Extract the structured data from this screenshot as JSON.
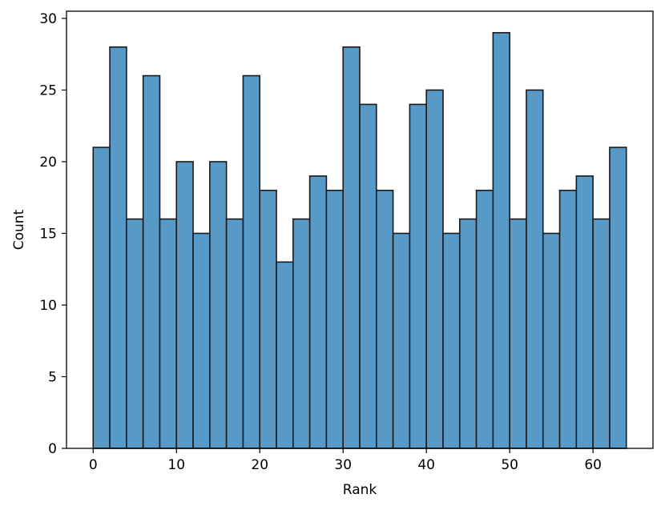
{
  "chart_data": {
    "type": "bar",
    "title": "",
    "xlabel": "Rank",
    "ylabel": "Count",
    "xlim": [
      -3.2,
      67.2
    ],
    "ylim": [
      0,
      30.5
    ],
    "xticks": [
      0,
      10,
      20,
      30,
      40,
      50,
      60
    ],
    "yticks": [
      0,
      5,
      10,
      15,
      20,
      25,
      30
    ],
    "grid": false,
    "bar_color": "#5799c7",
    "edge_color": "#1a1a1a",
    "bins": [
      {
        "x0": 0,
        "x1": 2,
        "count": 21
      },
      {
        "x0": 2,
        "x1": 4,
        "count": 28
      },
      {
        "x0": 4,
        "x1": 6,
        "count": 16
      },
      {
        "x0": 6,
        "x1": 8,
        "count": 26
      },
      {
        "x0": 8,
        "x1": 10,
        "count": 16
      },
      {
        "x0": 10,
        "x1": 12,
        "count": 20
      },
      {
        "x0": 12,
        "x1": 14,
        "count": 15
      },
      {
        "x0": 14,
        "x1": 16,
        "count": 20
      },
      {
        "x0": 16,
        "x1": 18,
        "count": 16
      },
      {
        "x0": 18,
        "x1": 20,
        "count": 26
      },
      {
        "x0": 20,
        "x1": 22,
        "count": 18
      },
      {
        "x0": 22,
        "x1": 24,
        "count": 13
      },
      {
        "x0": 24,
        "x1": 26,
        "count": 16
      },
      {
        "x0": 26,
        "x1": 28,
        "count": 19
      },
      {
        "x0": 28,
        "x1": 30,
        "count": 18
      },
      {
        "x0": 30,
        "x1": 32,
        "count": 28
      },
      {
        "x0": 32,
        "x1": 34,
        "count": 24
      },
      {
        "x0": 34,
        "x1": 36,
        "count": 18
      },
      {
        "x0": 36,
        "x1": 38,
        "count": 15
      },
      {
        "x0": 38,
        "x1": 40,
        "count": 24
      },
      {
        "x0": 40,
        "x1": 42,
        "count": 25
      },
      {
        "x0": 42,
        "x1": 44,
        "count": 15
      },
      {
        "x0": 44,
        "x1": 46,
        "count": 16
      },
      {
        "x0": 46,
        "x1": 48,
        "count": 18
      },
      {
        "x0": 48,
        "x1": 50,
        "count": 29
      },
      {
        "x0": 50,
        "x1": 52,
        "count": 16
      },
      {
        "x0": 52,
        "x1": 54,
        "count": 25
      },
      {
        "x0": 54,
        "x1": 56,
        "count": 15
      },
      {
        "x0": 56,
        "x1": 58,
        "count": 18
      },
      {
        "x0": 58,
        "x1": 60,
        "count": 19
      },
      {
        "x0": 60,
        "x1": 62,
        "count": 16
      },
      {
        "x0": 62,
        "x1": 64,
        "count": 21
      }
    ]
  }
}
